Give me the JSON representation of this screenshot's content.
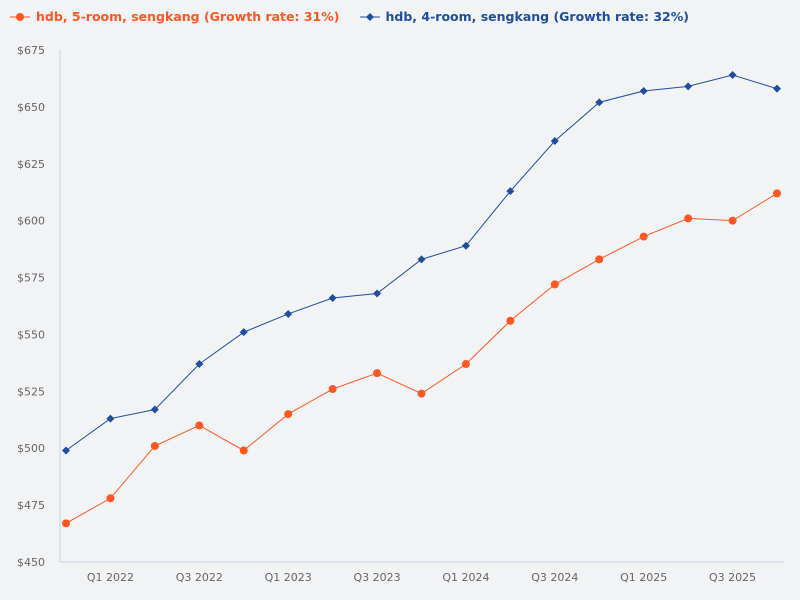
{
  "chart_data": {
    "type": "line",
    "categories": [
      "Q4 2021",
      "Q1 2022",
      "Q2 2022",
      "Q3 2022",
      "Q4 2022",
      "Q1 2023",
      "Q2 2023",
      "Q3 2023",
      "Q4 2023",
      "Q1 2024",
      "Q2 2024",
      "Q3 2024",
      "Q4 2024",
      "Q1 2025",
      "Q2 2025",
      "Q3 2025",
      "Q4 2025"
    ],
    "x_tick_labels": [
      "Q1 2022",
      "Q3 2022",
      "Q1 2023",
      "Q3 2023",
      "Q1 2024",
      "Q3 2024",
      "Q1 2025",
      "Q3 2025"
    ],
    "y_tick_labels": [
      "$450",
      "$475",
      "$500",
      "$525",
      "$550",
      "$575",
      "$600",
      "$625",
      "$650",
      "$675"
    ],
    "ylim": [
      450,
      675
    ],
    "grid": false,
    "legend_position": "top-left",
    "series": [
      {
        "name": "hdb, 5-room, sengkang (Growth rate: 31%)",
        "color": "#ff5722",
        "marker": "circle",
        "values": [
          467,
          478,
          501,
          510,
          499,
          515,
          526,
          533,
          524,
          537,
          556,
          572,
          583,
          593,
          601,
          600,
          612
        ]
      },
      {
        "name": "hdb, 4-room, sengkang (Growth rate: 32%)",
        "color": "#1f4e9e",
        "marker": "diamond",
        "values": [
          499,
          513,
          517,
          537,
          551,
          559,
          566,
          568,
          583,
          589,
          613,
          635,
          652,
          657,
          659,
          664,
          658
        ]
      }
    ]
  }
}
